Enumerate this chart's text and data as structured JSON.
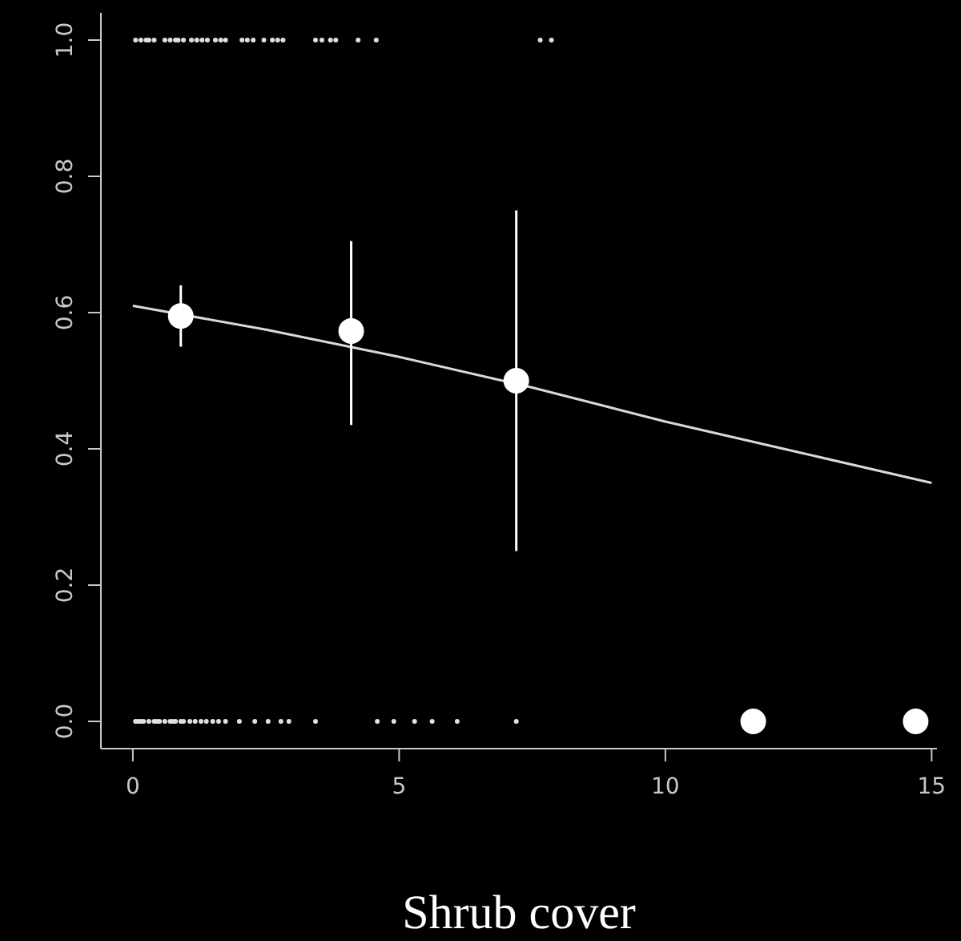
{
  "chart_data": {
    "type": "scatter",
    "xlabel": "Shrub cover",
    "xlim": [
      -0.6,
      15.1
    ],
    "ylim": [
      -0.04,
      1.04
    ],
    "xticks": [
      0,
      5,
      10,
      15
    ],
    "yticks": [
      {
        "value": 0,
        "label": "0.0"
      },
      {
        "value": 0.2,
        "label": "0.2"
      },
      {
        "value": 0.4,
        "label": "0.4"
      },
      {
        "value": 0.6,
        "label": "0.6"
      },
      {
        "value": 0.8,
        "label": "0.8"
      },
      {
        "value": 1,
        "label": "1.0"
      }
    ],
    "grid": false,
    "series": [
      {
        "type": "line",
        "color": "#d9d9d9",
        "x": [
          0,
          2.5,
          5,
          7.5,
          10,
          12.5,
          15
        ],
        "values": [
          0.61,
          0.575,
          0.535,
          0.49,
          0.44,
          0.395,
          0.35
        ]
      },
      {
        "color": "#e0e0e0",
        "x": [
          0.05,
          0.1,
          0.15,
          0.2,
          0.3,
          0.4,
          0.45,
          0.5,
          0.6,
          0.7,
          0.75,
          0.8,
          0.9,
          0.95,
          1.07,
          1.17,
          1.28,
          1.38,
          1.5,
          1.61,
          1.74,
          2.0,
          2.29,
          2.54,
          2.78,
          2.93,
          3.43,
          4.59,
          4.9,
          5.29,
          5.62,
          6.09,
          7.2
        ],
        "values": [
          0,
          0,
          0,
          0,
          0,
          0,
          0,
          0,
          0,
          0,
          0,
          0,
          0,
          0,
          0,
          0,
          0,
          0,
          0,
          0,
          0,
          0,
          0,
          0,
          0,
          0,
          0,
          0,
          0,
          0,
          0,
          0,
          0
        ]
      },
      {
        "color": "#e0e0e0",
        "x": [
          0.05,
          0.15,
          0.25,
          0.3,
          0.4,
          0.6,
          0.7,
          0.8,
          0.85,
          0.95,
          1.1,
          1.2,
          1.3,
          1.4,
          1.55,
          1.65,
          1.74,
          2.05,
          2.15,
          2.26,
          2.46,
          2.62,
          2.72,
          2.82,
          3.43,
          3.55,
          3.71,
          3.81,
          4.23,
          4.57,
          7.65,
          7.86
        ],
        "values": [
          1,
          1,
          1,
          1,
          1,
          1,
          1,
          1,
          1,
          1,
          1,
          1,
          1,
          1,
          1,
          1,
          1,
          1,
          1,
          1,
          1,
          1,
          1,
          1,
          1,
          1,
          1,
          1,
          1,
          1,
          1,
          1
        ]
      },
      {
        "marker": "circle",
        "color": "#ffffff",
        "x": [
          0.9,
          4.1,
          7.2,
          11.65,
          14.7
        ],
        "values": [
          0.595,
          0.573,
          0.5,
          0,
          0
        ],
        "errors": [
          [
            0.55,
            0.64
          ],
          [
            0.435,
            0.705
          ],
          [
            0.25,
            0.75
          ],
          null,
          null
        ]
      }
    ]
  }
}
